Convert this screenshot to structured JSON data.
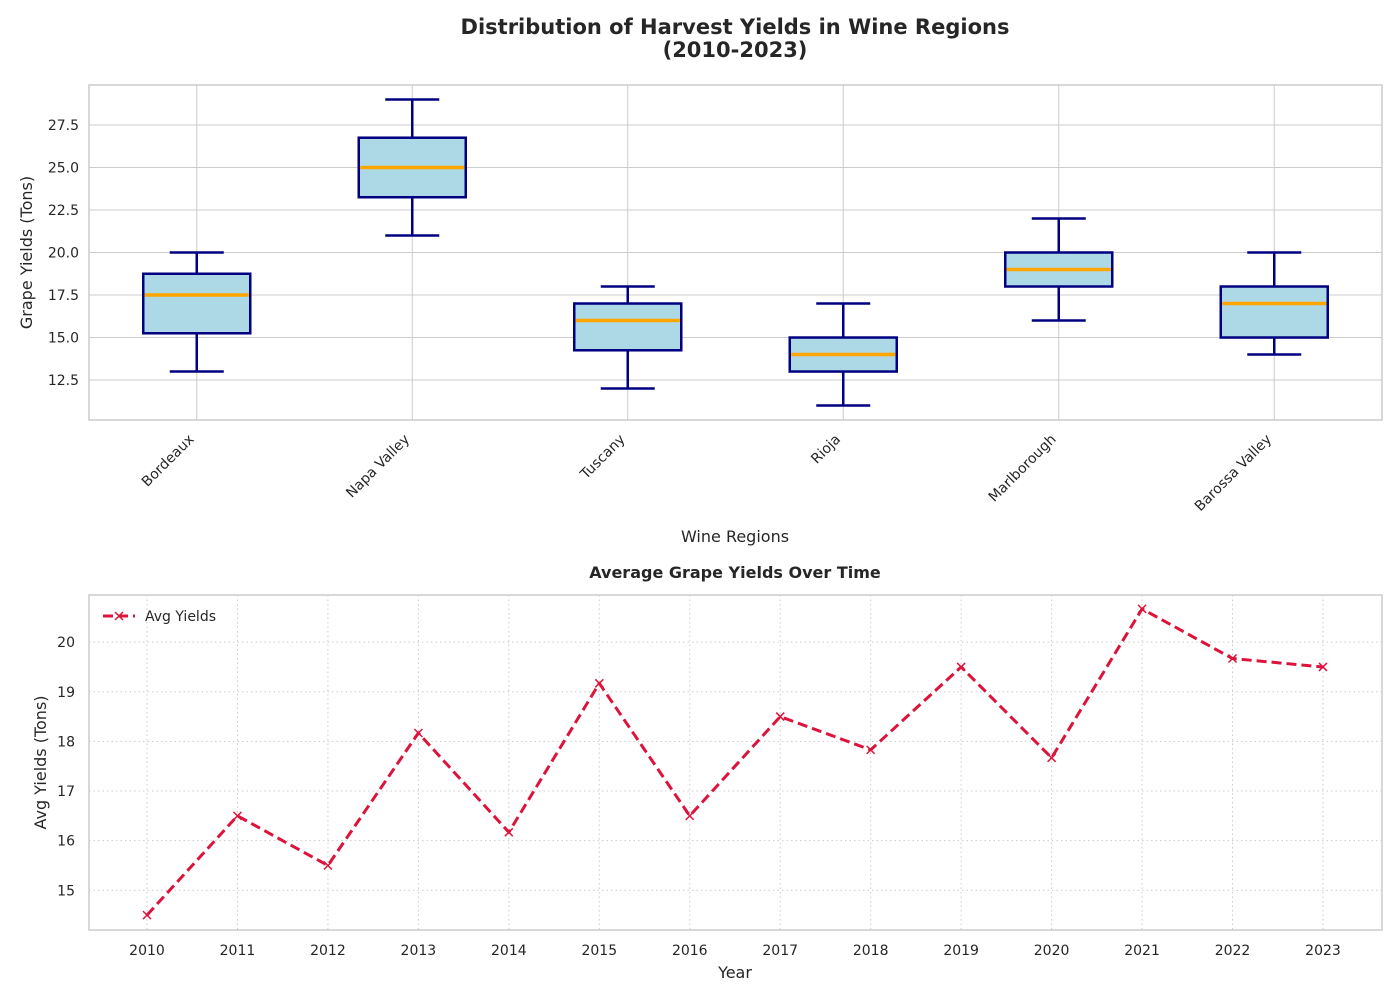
{
  "chart_data": [
    {
      "type": "box",
      "title": "Distribution of Harvest Yields in Wine Regions\n(2010-2023)",
      "xlabel": "Wine Regions",
      "ylabel": "Grape Yields (Tons)",
      "ylim": [
        10.15,
        29.85
      ],
      "yticks": [
        12.5,
        15.0,
        17.5,
        20.0,
        22.5,
        25.0,
        27.5
      ],
      "ytick_labels": [
        "12.5",
        "15.0",
        "17.5",
        "20.0",
        "22.5",
        "25.0",
        "27.5"
      ],
      "categories": [
        "Bordeaux",
        "Napa Valley",
        "Tuscany",
        "Rioja",
        "Marlborough",
        "Barossa Valley"
      ],
      "boxes": [
        {
          "min": 13,
          "q1": 15.25,
          "median": 17.5,
          "q3": 18.75,
          "max": 20
        },
        {
          "min": 21,
          "q1": 23.25,
          "median": 25,
          "q3": 26.75,
          "max": 29
        },
        {
          "min": 12,
          "q1": 14.25,
          "median": 16,
          "q3": 17,
          "max": 18
        },
        {
          "min": 11,
          "q1": 13,
          "median": 14,
          "q3": 15,
          "max": 17
        },
        {
          "min": 16,
          "q1": 18,
          "median": 19,
          "q3": 20,
          "max": 22
        },
        {
          "min": 14,
          "q1": 15,
          "median": 17,
          "q3": 18,
          "max": 20
        }
      ],
      "grid": true,
      "colors": {
        "box_fill": "#add8e6",
        "box_edge": "#000080",
        "median": "#ffa500",
        "grid": "#cccccc"
      }
    },
    {
      "type": "line",
      "title": "Average Grape Yields Over Time",
      "xlabel": "Year",
      "ylabel": "Avg Yields (Tons)",
      "ylim": [
        14.2,
        20.95
      ],
      "yticks": [
        15,
        16,
        17,
        18,
        19,
        20
      ],
      "ytick_labels": [
        "15",
        "16",
        "17",
        "18",
        "19",
        "20"
      ],
      "x": [
        "2010",
        "2011",
        "2012",
        "2013",
        "2014",
        "2015",
        "2016",
        "2017",
        "2018",
        "2019",
        "2020",
        "2021",
        "2022",
        "2023"
      ],
      "series": [
        {
          "name": "Avg Yields",
          "values": [
            14.5,
            16.5,
            15.5,
            18.17,
            16.17,
            19.17,
            16.5,
            18.5,
            17.83,
            19.5,
            17.67,
            20.67,
            19.67,
            19.5
          ],
          "color": "#dc143c",
          "linestyle": "dashed",
          "marker": "x"
        }
      ],
      "legend": "top-left",
      "grid": true,
      "colors": {
        "grid": "#cccccc"
      }
    }
  ]
}
